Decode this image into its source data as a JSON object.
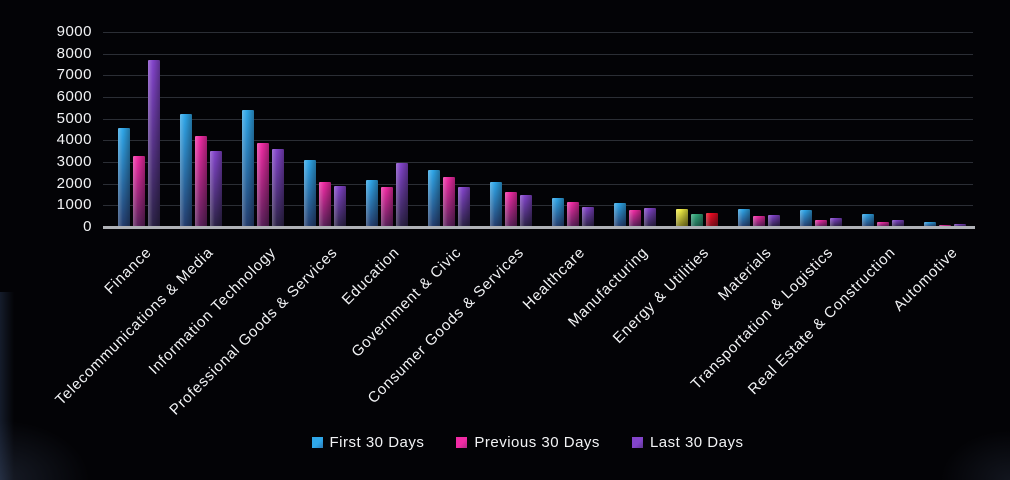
{
  "chart_data": {
    "type": "bar",
    "title": "",
    "xlabel": "",
    "ylabel": "",
    "categories": [
      "Finance",
      "Telecommunications & Media",
      "Information Technology",
      "Professional Goods & Services",
      "Education",
      "Government & Civic",
      "Consumer Goods & Services",
      "Healthcare",
      "Manufacturing",
      "Energy & Utilities",
      "Materials",
      "Transportation & Logistics",
      "Real Estate & Construction",
      "Automotive"
    ],
    "series": [
      {
        "name": "First 30 Days",
        "values": [
          4580,
          5200,
          5380,
          3090,
          2170,
          2630,
          2080,
          1350,
          1120,
          830,
          815,
          770,
          585,
          215
        ],
        "color": {
          "top": "#2fa7e9",
          "bottom": "#253d6e"
        }
      },
      {
        "name": "Previous 30 Days",
        "values": [
          3280,
          4180,
          3860,
          2090,
          1830,
          2320,
          1600,
          1150,
          790,
          600,
          510,
          340,
          215,
          70
        ],
        "color": {
          "top": "#f12ba4",
          "bottom": "#59215a"
        }
      },
      {
        "name": "Last 30 Days",
        "values": [
          7700,
          3520,
          3590,
          1880,
          2950,
          1830,
          1460,
          940,
          860,
          630,
          570,
          430,
          325,
          140
        ],
        "color": {
          "top": "#8344cb",
          "bottom": "#2c2347"
        }
      }
    ],
    "category_color_overrides": {
      "Energy & Utilities": [
        {
          "top": "#f4ef45",
          "bottom": "#79741f"
        },
        {
          "top": "#32a87a",
          "bottom": "#1f6150"
        },
        {
          "top": "#ee0a22",
          "bottom": "#840f1e"
        }
      ]
    },
    "ylim": [
      0,
      9000
    ],
    "ytick_step": 1000,
    "yticks": [
      "9000",
      "8000",
      "7000",
      "6000",
      "5000",
      "4000",
      "3000",
      "2000",
      "1000",
      "0"
    ],
    "grid": true,
    "legend_position": "bottom"
  },
  "colors": {
    "background": "#030306",
    "gridline": "#2b2e35",
    "baseline": "#b0b2b7",
    "text": "#f2f3f5"
  }
}
